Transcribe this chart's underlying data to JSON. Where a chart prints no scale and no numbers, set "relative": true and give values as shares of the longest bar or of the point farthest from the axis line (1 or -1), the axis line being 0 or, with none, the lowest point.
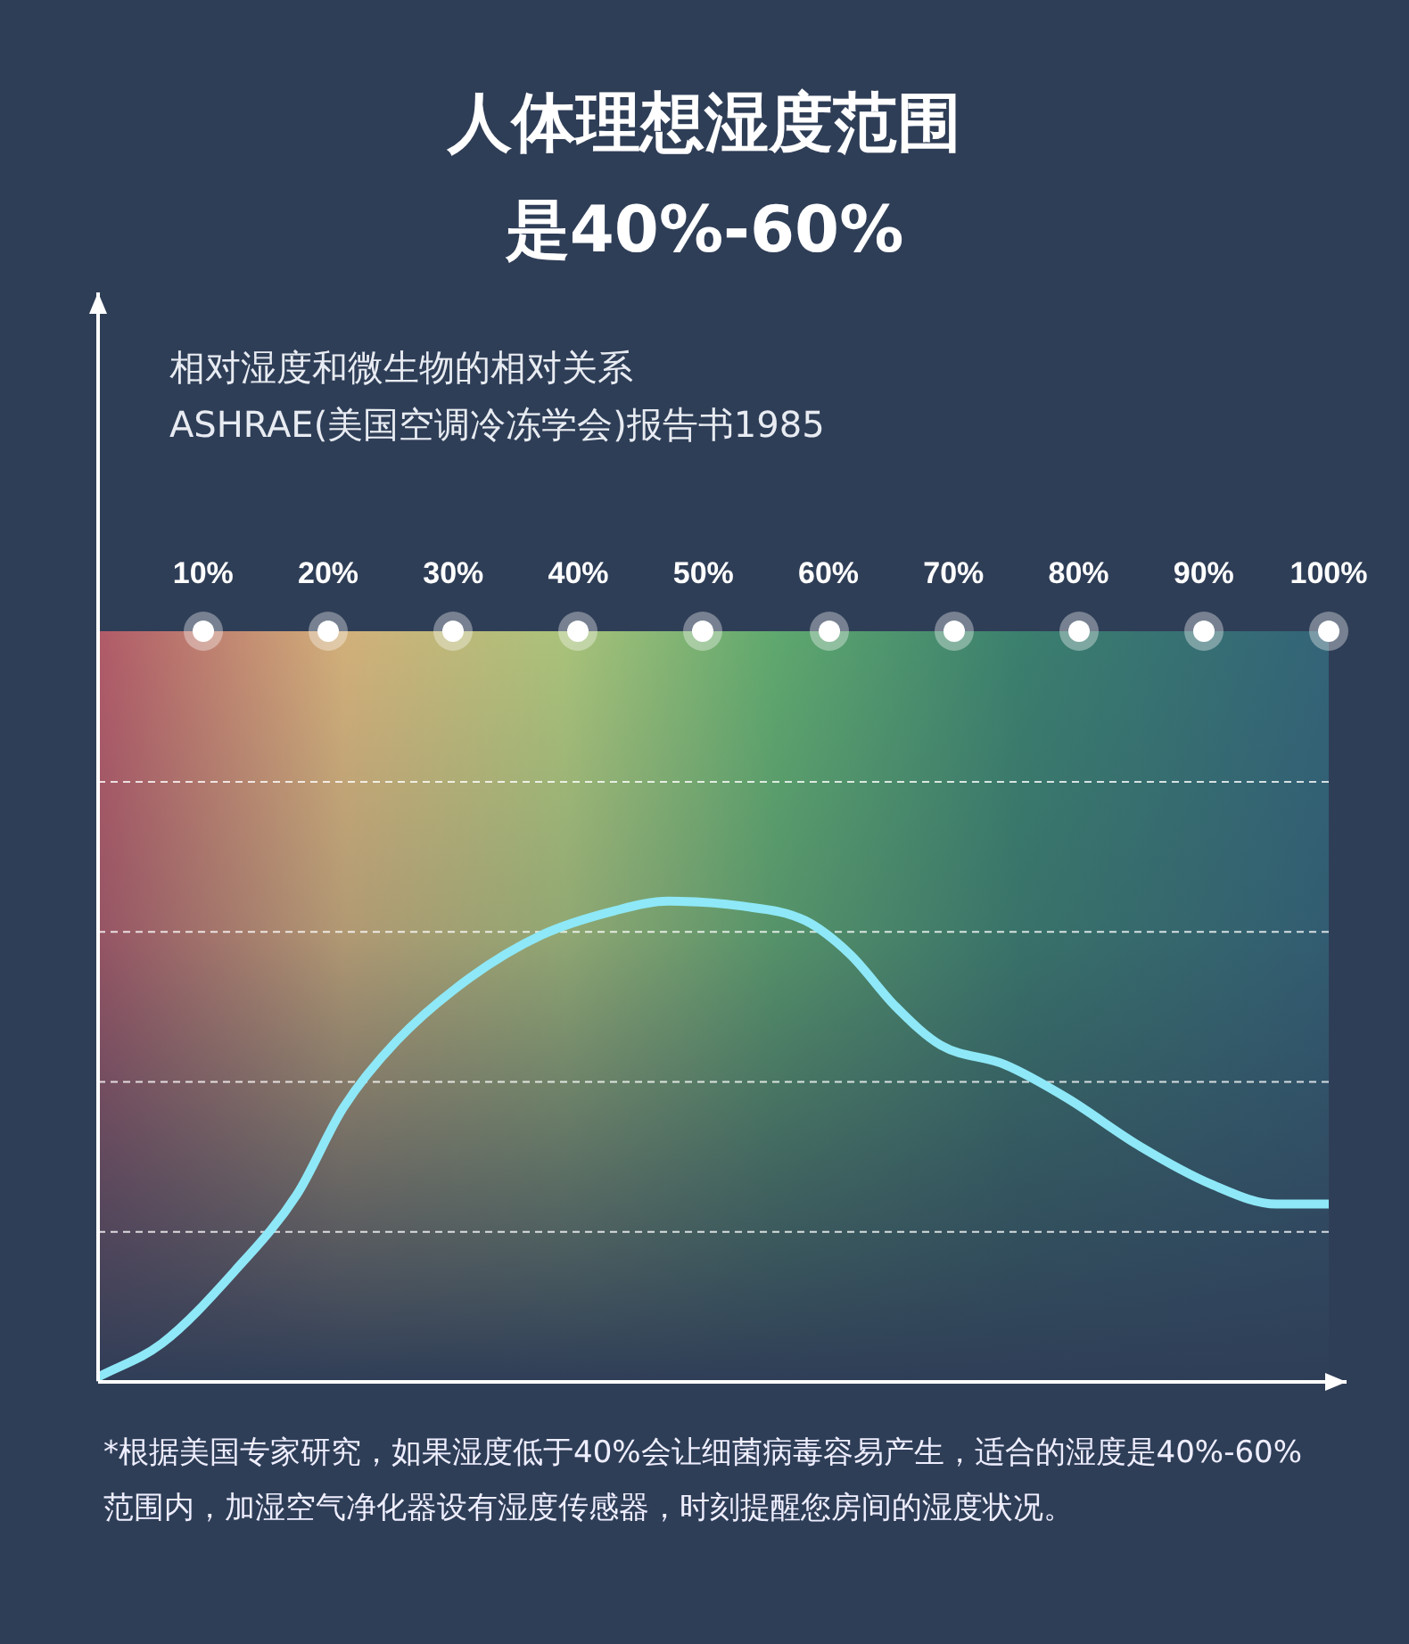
{
  "chart_data": {
    "type": "line",
    "title": "人体理想湿度范围是40%-60%",
    "subtitle": "相对湿度和微生物的相对关系",
    "relative": true,
    "grid": "y",
    "marker": "none",
    "xlim": [
      1.6,
      100
    ],
    "xticks": [
      {
        "value": 10,
        "label": "10%"
      },
      {
        "value": 20,
        "label": "20%"
      },
      {
        "value": 30,
        "label": "30%"
      },
      {
        "value": 40,
        "label": "40%"
      },
      {
        "value": 50,
        "label": "50%"
      },
      {
        "value": 60,
        "label": "60%"
      },
      {
        "value": 70,
        "label": "70%"
      },
      {
        "value": 80,
        "label": "80%"
      },
      {
        "value": 90,
        "label": "90%"
      },
      {
        "value": 100,
        "label": "100%"
      }
    ],
    "x": [
      1.6,
      6.7,
      12.5,
      17.5,
      21.2,
      25.5,
      31.3,
      37.1,
      42.9,
      47.2,
      53.0,
      58.1,
      61.7,
      65.4,
      69.0,
      74.1,
      79.1,
      84.9,
      90.7,
      95.8,
      100
    ],
    "series": [
      {
        "color": "#8ee8f7",
        "values": [
          0.01,
          0.08,
          0.23,
          0.39,
          0.57,
          0.71,
          0.84,
          0.93,
          0.98,
          1.0,
          0.99,
          0.96,
          0.89,
          0.78,
          0.7,
          0.66,
          0.59,
          0.49,
          0.41,
          0.37,
          0.37
        ]
      }
    ],
    "annotations": [
      "ASHRAE(美国空调冷冻学会)报告书1985",
      "*根据美国专家研究，如果湿度低于40%会让细菌病毒容易产生，适合的湿度是40%-60%范围内，加湿空气净化器设有湿度传感器，时刻提醒您房间的湿度状况。"
    ]
  }
}
